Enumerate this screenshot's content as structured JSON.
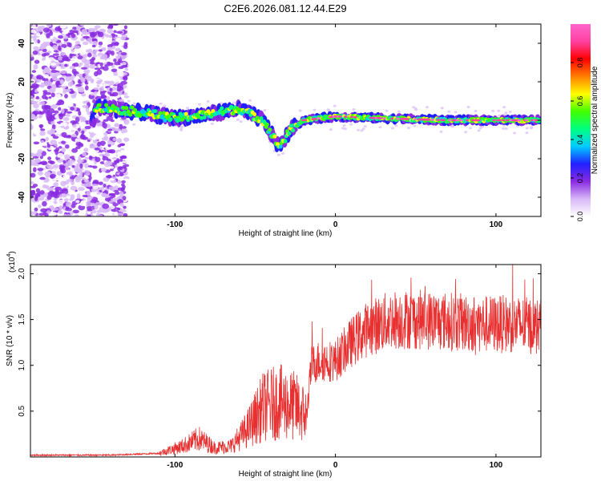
{
  "title": "C2E6.2026.081.12.44.E29",
  "chart_data": [
    {
      "type": "heatmap",
      "xlabel": "Height of straight line (km)",
      "ylabel": "Frequency (Hz)",
      "xlim": [
        -190,
        128
      ],
      "ylim": [
        -50,
        50
      ],
      "xticks": [
        -100,
        0,
        100
      ],
      "yticks": [
        -40,
        -20,
        0,
        20,
        40
      ],
      "colorbar": {
        "label": "Normalized spectral amplitude",
        "range": [
          0,
          1
        ],
        "ticks": [
          "0.0",
          "0.2",
          "0.4",
          "0.6",
          "0.8"
        ],
        "colors": [
          "#ffffff",
          "#d8b8f8",
          "#8a2be2",
          "#2020ff",
          "#00ccff",
          "#00ff80",
          "#40ff00",
          "#ffff00",
          "#ff8000",
          "#ff0000",
          "#ff40a0",
          "#ff66cc"
        ]
      },
      "band_trace": [
        {
          "x": -150,
          "f": 7
        },
        {
          "x": -120,
          "f": 4
        },
        {
          "x": -100,
          "f": 1
        },
        {
          "x": -80,
          "f": 3
        },
        {
          "x": -60,
          "f": 6
        },
        {
          "x": -45,
          "f": 0
        },
        {
          "x": -35,
          "f": -14
        },
        {
          "x": -28,
          "f": -5
        },
        {
          "x": -20,
          "f": 0
        },
        {
          "x": 0,
          "f": 2
        },
        {
          "x": 30,
          "f": 1
        },
        {
          "x": 70,
          "f": 0
        },
        {
          "x": 128,
          "f": 0
        }
      ]
    },
    {
      "type": "line",
      "xlabel": "Height of straight line (km)",
      "ylabel": "SNR (10 * v/v)",
      "y_multiplier": "(x10",
      "y_exponent": "4",
      "xlim": [
        -190,
        128
      ],
      "ylim": [
        0,
        2.1
      ],
      "xticks": [
        -100,
        0,
        100
      ],
      "yticks": [
        "0.5",
        "1.0",
        "1.5",
        "2.0"
      ],
      "series": [
        {
          "name": "SNR",
          "color": "#e83030",
          "envelope": [
            {
              "x": -190,
              "y": 0.02
            },
            {
              "x": -140,
              "y": 0.02
            },
            {
              "x": -110,
              "y": 0.04
            },
            {
              "x": -95,
              "y": 0.12
            },
            {
              "x": -85,
              "y": 0.2
            },
            {
              "x": -75,
              "y": 0.1
            },
            {
              "x": -65,
              "y": 0.12
            },
            {
              "x": -55,
              "y": 0.3
            },
            {
              "x": -45,
              "y": 0.55
            },
            {
              "x": -35,
              "y": 0.6
            },
            {
              "x": -25,
              "y": 0.55
            },
            {
              "x": -18,
              "y": 0.45
            },
            {
              "x": -15,
              "y": 1.0
            },
            {
              "x": -10,
              "y": 1.05
            },
            {
              "x": 0,
              "y": 1.05
            },
            {
              "x": 10,
              "y": 1.25
            },
            {
              "x": 20,
              "y": 1.4
            },
            {
              "x": 35,
              "y": 1.5
            },
            {
              "x": 50,
              "y": 1.5
            },
            {
              "x": 70,
              "y": 1.48
            },
            {
              "x": 90,
              "y": 1.45
            },
            {
              "x": 110,
              "y": 1.45
            },
            {
              "x": 128,
              "y": 1.42
            }
          ]
        }
      ]
    }
  ]
}
